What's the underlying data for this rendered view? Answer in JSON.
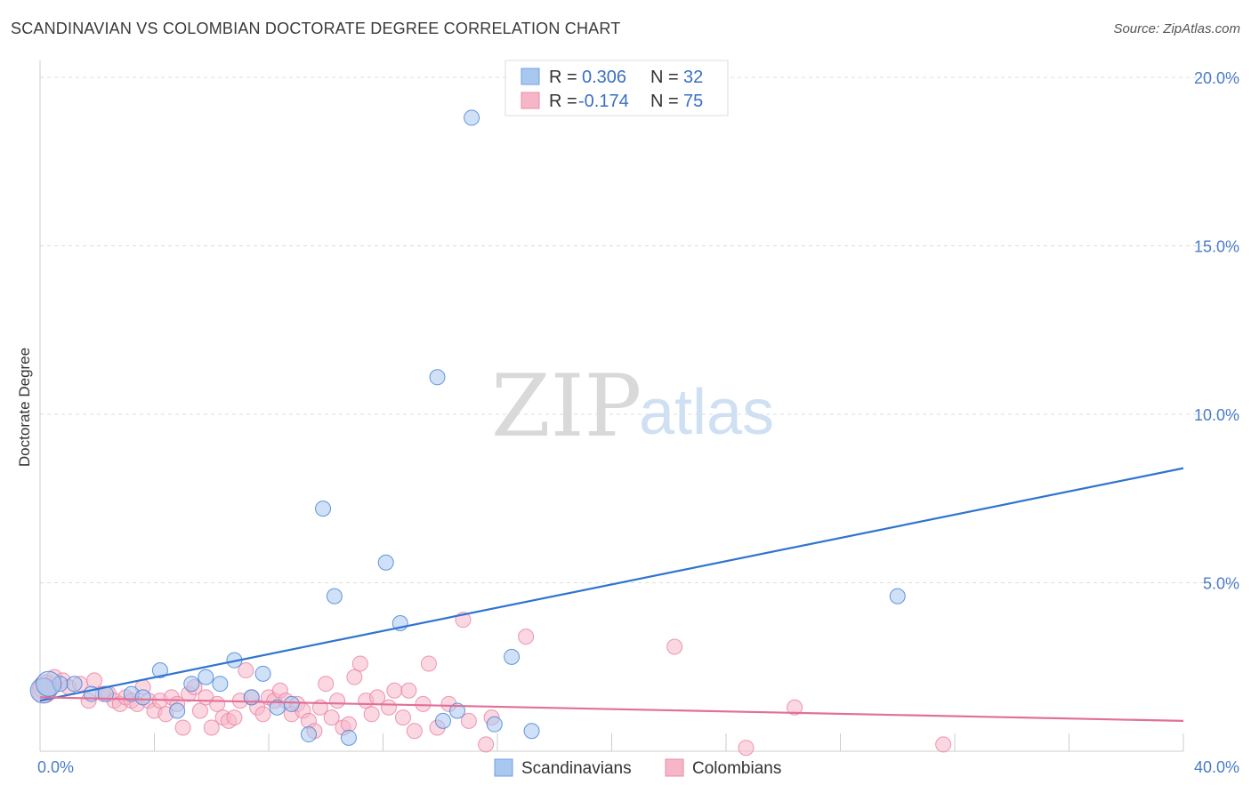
{
  "header": {
    "title": "SCANDINAVIAN VS COLOMBIAN DOCTORATE DEGREE CORRELATION CHART",
    "source": "Source: ZipAtlas.com"
  },
  "watermark": {
    "zip": "ZIP",
    "atlas": "atlas"
  },
  "legend": {
    "items": [
      {
        "r_label": "R =",
        "r_value": "0.306",
        "n_label": "N =",
        "n_value": "32",
        "color": "#a9c8f0"
      },
      {
        "r_label": "R =",
        "r_value": "-0.174",
        "n_label": "N =",
        "n_value": "75",
        "color": "#f7b6c8"
      }
    ]
  },
  "chart_data": {
    "type": "scatter",
    "title": "SCANDINAVIAN VS COLOMBIAN DOCTORATE DEGREE CORRELATION CHART",
    "xlabel": "",
    "ylabel": "Doctorate Degree",
    "xlim": [
      0,
      40
    ],
    "ylim": [
      0,
      20.5
    ],
    "x_tick_labels": [
      "0.0%",
      "40.0%"
    ],
    "y_ticks": [
      5,
      10,
      15,
      20
    ],
    "y_tick_labels": [
      "5.0%",
      "10.0%",
      "15.0%",
      "20.0%"
    ],
    "grid": true,
    "legend_placement": "top-center",
    "series": [
      {
        "name": "Scandinavians",
        "color": "#a9c8f0",
        "edge": "#3d7fd6",
        "trend": {
          "x": [
            0,
            40
          ],
          "y": [
            1.5,
            8.4
          ],
          "color": "#2f74d0"
        },
        "points": [
          [
            0.1,
            1.8
          ],
          [
            0.7,
            2.0
          ],
          [
            1.2,
            2.0
          ],
          [
            1.8,
            1.7
          ],
          [
            2.3,
            1.7
          ],
          [
            3.2,
            1.7
          ],
          [
            3.6,
            1.6
          ],
          [
            4.2,
            2.4
          ],
          [
            4.8,
            1.2
          ],
          [
            5.3,
            2.0
          ],
          [
            5.8,
            2.2
          ],
          [
            6.3,
            2.0
          ],
          [
            6.8,
            2.7
          ],
          [
            7.4,
            1.6
          ],
          [
            7.8,
            2.3
          ],
          [
            8.3,
            1.3
          ],
          [
            8.8,
            1.4
          ],
          [
            9.4,
            0.5
          ],
          [
            9.9,
            7.2
          ],
          [
            10.3,
            4.6
          ],
          [
            10.8,
            0.4
          ],
          [
            12.1,
            5.6
          ],
          [
            12.6,
            3.8
          ],
          [
            13.9,
            11.1
          ],
          [
            14.1,
            0.9
          ],
          [
            14.6,
            1.2
          ],
          [
            15.1,
            18.8
          ],
          [
            15.9,
            0.8
          ],
          [
            16.5,
            2.8
          ],
          [
            17.2,
            0.6
          ],
          [
            30.0,
            4.6
          ],
          [
            0.3,
            2.0
          ]
        ]
      },
      {
        "name": "Colombians",
        "color": "#f7b6c8",
        "edge": "#e87fa0",
        "trend": {
          "x": [
            0,
            40
          ],
          "y": [
            1.6,
            0.9
          ],
          "color": "#e26f97"
        },
        "points": [
          [
            0.2,
            1.9
          ],
          [
            0.5,
            2.2
          ],
          [
            0.8,
            2.1
          ],
          [
            1.0,
            1.9
          ],
          [
            1.4,
            2.0
          ],
          [
            1.7,
            1.5
          ],
          [
            1.9,
            2.1
          ],
          [
            2.2,
            1.7
          ],
          [
            2.4,
            1.7
          ],
          [
            2.6,
            1.5
          ],
          [
            2.8,
            1.4
          ],
          [
            3.0,
            1.6
          ],
          [
            3.2,
            1.5
          ],
          [
            3.4,
            1.4
          ],
          [
            3.6,
            1.9
          ],
          [
            3.8,
            1.5
          ],
          [
            4.0,
            1.2
          ],
          [
            4.2,
            1.5
          ],
          [
            4.4,
            1.1
          ],
          [
            4.6,
            1.6
          ],
          [
            4.8,
            1.4
          ],
          [
            5.0,
            0.7
          ],
          [
            5.2,
            1.7
          ],
          [
            5.4,
            1.9
          ],
          [
            5.6,
            1.2
          ],
          [
            5.8,
            1.6
          ],
          [
            6.0,
            0.7
          ],
          [
            6.2,
            1.4
          ],
          [
            6.4,
            1.0
          ],
          [
            6.6,
            0.9
          ],
          [
            6.8,
            1.0
          ],
          [
            7.0,
            1.5
          ],
          [
            7.2,
            2.4
          ],
          [
            7.4,
            1.6
          ],
          [
            7.6,
            1.3
          ],
          [
            7.8,
            1.1
          ],
          [
            8.0,
            1.6
          ],
          [
            8.2,
            1.5
          ],
          [
            8.4,
            1.8
          ],
          [
            8.6,
            1.5
          ],
          [
            8.8,
            1.1
          ],
          [
            9.0,
            1.4
          ],
          [
            9.2,
            1.2
          ],
          [
            9.4,
            0.9
          ],
          [
            9.6,
            0.6
          ],
          [
            9.8,
            1.3
          ],
          [
            10.0,
            2.0
          ],
          [
            10.2,
            1.0
          ],
          [
            10.4,
            1.5
          ],
          [
            10.6,
            0.7
          ],
          [
            10.8,
            0.8
          ],
          [
            11.0,
            2.2
          ],
          [
            11.2,
            2.6
          ],
          [
            11.4,
            1.5
          ],
          [
            11.6,
            1.1
          ],
          [
            11.8,
            1.6
          ],
          [
            12.2,
            1.3
          ],
          [
            12.4,
            1.8
          ],
          [
            12.7,
            1.0
          ],
          [
            12.9,
            1.8
          ],
          [
            13.1,
            0.6
          ],
          [
            13.4,
            1.4
          ],
          [
            13.6,
            2.6
          ],
          [
            13.9,
            0.7
          ],
          [
            14.3,
            1.4
          ],
          [
            14.8,
            3.9
          ],
          [
            15.0,
            0.9
          ],
          [
            15.6,
            0.2
          ],
          [
            15.8,
            1.0
          ],
          [
            17.0,
            3.4
          ],
          [
            22.2,
            3.1
          ],
          [
            24.7,
            0.1
          ],
          [
            26.4,
            1.3
          ],
          [
            31.6,
            0.2
          ],
          [
            0.15,
            1.8
          ]
        ]
      }
    ]
  },
  "bottom_legend": {
    "items": [
      {
        "label": "Scandinavians",
        "color": "#a9c8f0",
        "edge": "#3d7fd6"
      },
      {
        "label": "Colombians",
        "color": "#f7b6c8",
        "edge": "#e87fa0"
      }
    ]
  }
}
